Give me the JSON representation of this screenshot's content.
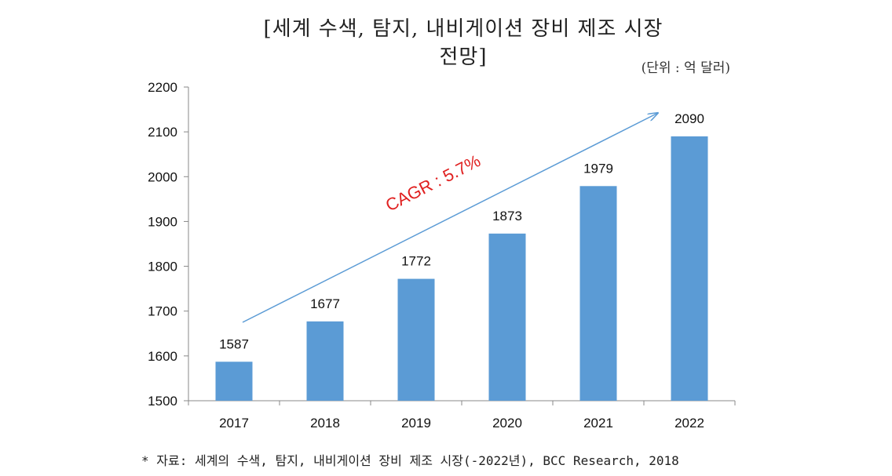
{
  "title_line1": "[세계 수색, 탐지, 내비게이션 장비 제조 시장",
  "title_line2": "전망]",
  "unit_label": "(단위 : 억 달러)",
  "source_note": "* 자료: 세계의 수색, 탐지, 내비게이션 장비 제조 시장(-2022년), BCC Research, 2018",
  "annotation": {
    "text": "CAGR : 5.7%",
    "color": "#e02020"
  },
  "colors": {
    "bar": "#5b9bd5",
    "arrow": "#5b9bd5",
    "axis": "#888888"
  },
  "chart_data": {
    "type": "bar",
    "title": "[세계 수색, 탐지, 내비게이션 장비 제조 시장 전망]",
    "categories": [
      "2017",
      "2018",
      "2019",
      "2020",
      "2021",
      "2022"
    ],
    "values": [
      1587,
      1677,
      1772,
      1873,
      1979,
      2090
    ],
    "ylim": [
      1500,
      2200
    ],
    "yticks": [
      1500,
      1600,
      1700,
      1800,
      1900,
      2000,
      2100,
      2200
    ],
    "xlabel": "",
    "ylabel": "",
    "grid": false,
    "data_labels": true
  }
}
